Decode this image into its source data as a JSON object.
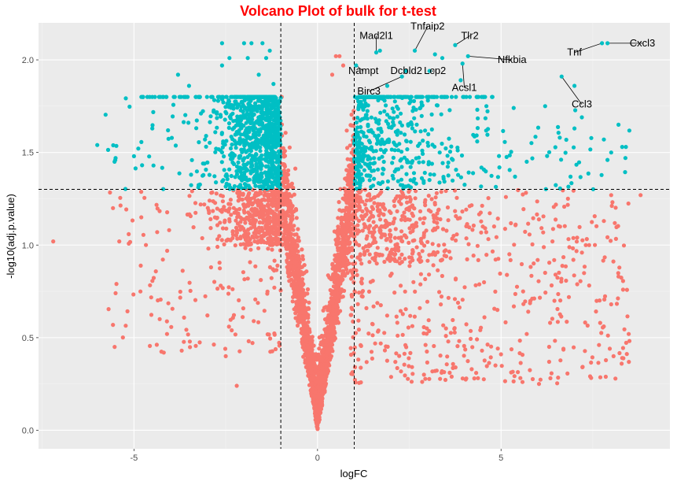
{
  "chart_data": {
    "type": "scatter",
    "title": "Volcano Plot of bulk for t-test",
    "xlabel": "logFC",
    "ylabel": "-log10(adj.p.value)",
    "xlim": [
      -7.6,
      9.6
    ],
    "ylim": [
      -0.1,
      2.2
    ],
    "x_ticks": [
      -5,
      0,
      5
    ],
    "y_ticks": [
      0.0,
      0.5,
      1.0,
      1.5,
      2.0
    ],
    "y_tick_labels": [
      "0.0",
      "0.5",
      "1.0",
      "1.5",
      "2.0"
    ],
    "thresholds": {
      "logFC": [
        -1,
        1
      ],
      "neg_log10_p": 1.301
    },
    "grid": true,
    "colors": {
      "panel_bg": "#ebebeb",
      "grid_major": "#ffffff",
      "grid_minor": "#f4f4f4",
      "not_significant": "#f8766d",
      "significant": "#00bfc4",
      "title": "#ff0000"
    },
    "labeled_genes": [
      {
        "gene": "Cxcl3",
        "x": 7.9,
        "y": 2.09,
        "label_dx": 0.95,
        "label_dy": 0.0
      },
      {
        "gene": "Tnf",
        "x": 7.75,
        "y": 2.09,
        "label_dx": -0.75,
        "label_dy": -0.05
      },
      {
        "gene": "Tlr2",
        "x": 3.75,
        "y": 2.08,
        "label_dx": 0.4,
        "label_dy": 0.05
      },
      {
        "gene": "Tnfaip2",
        "x": 2.65,
        "y": 2.05,
        "label_dx": 0.35,
        "label_dy": 0.13
      },
      {
        "gene": "Mad2l1",
        "x": 1.6,
        "y": 2.04,
        "label_dx": -0.0,
        "label_dy": 0.09
      },
      {
        "gene": "Nfkbia",
        "x": 4.1,
        "y": 2.02,
        "label_dx": 1.2,
        "label_dy": -0.02
      },
      {
        "gene": "Nampt",
        "x": 1.05,
        "y": 1.97,
        "label_dx": 0.2,
        "label_dy": -0.03
      },
      {
        "gene": "Dcbld2",
        "x": 2.4,
        "y": 1.94,
        "label_dx": 0.02,
        "label_dy": 0.0
      },
      {
        "gene": "Lcp2",
        "x": 3.05,
        "y": 1.94,
        "label_dx": 0.15,
        "label_dy": 0.0
      },
      {
        "gene": "Acsl1",
        "x": 3.95,
        "y": 1.98,
        "label_dx": 0.05,
        "label_dy": -0.13
      },
      {
        "gene": "Birc3",
        "x": 2.3,
        "y": 1.91,
        "label_dx": -0.9,
        "label_dy": -0.08
      },
      {
        "gene": "Ccl3",
        "x": 6.65,
        "y": 1.91,
        "label_dx": 0.55,
        "label_dy": -0.15
      }
    ]
  }
}
